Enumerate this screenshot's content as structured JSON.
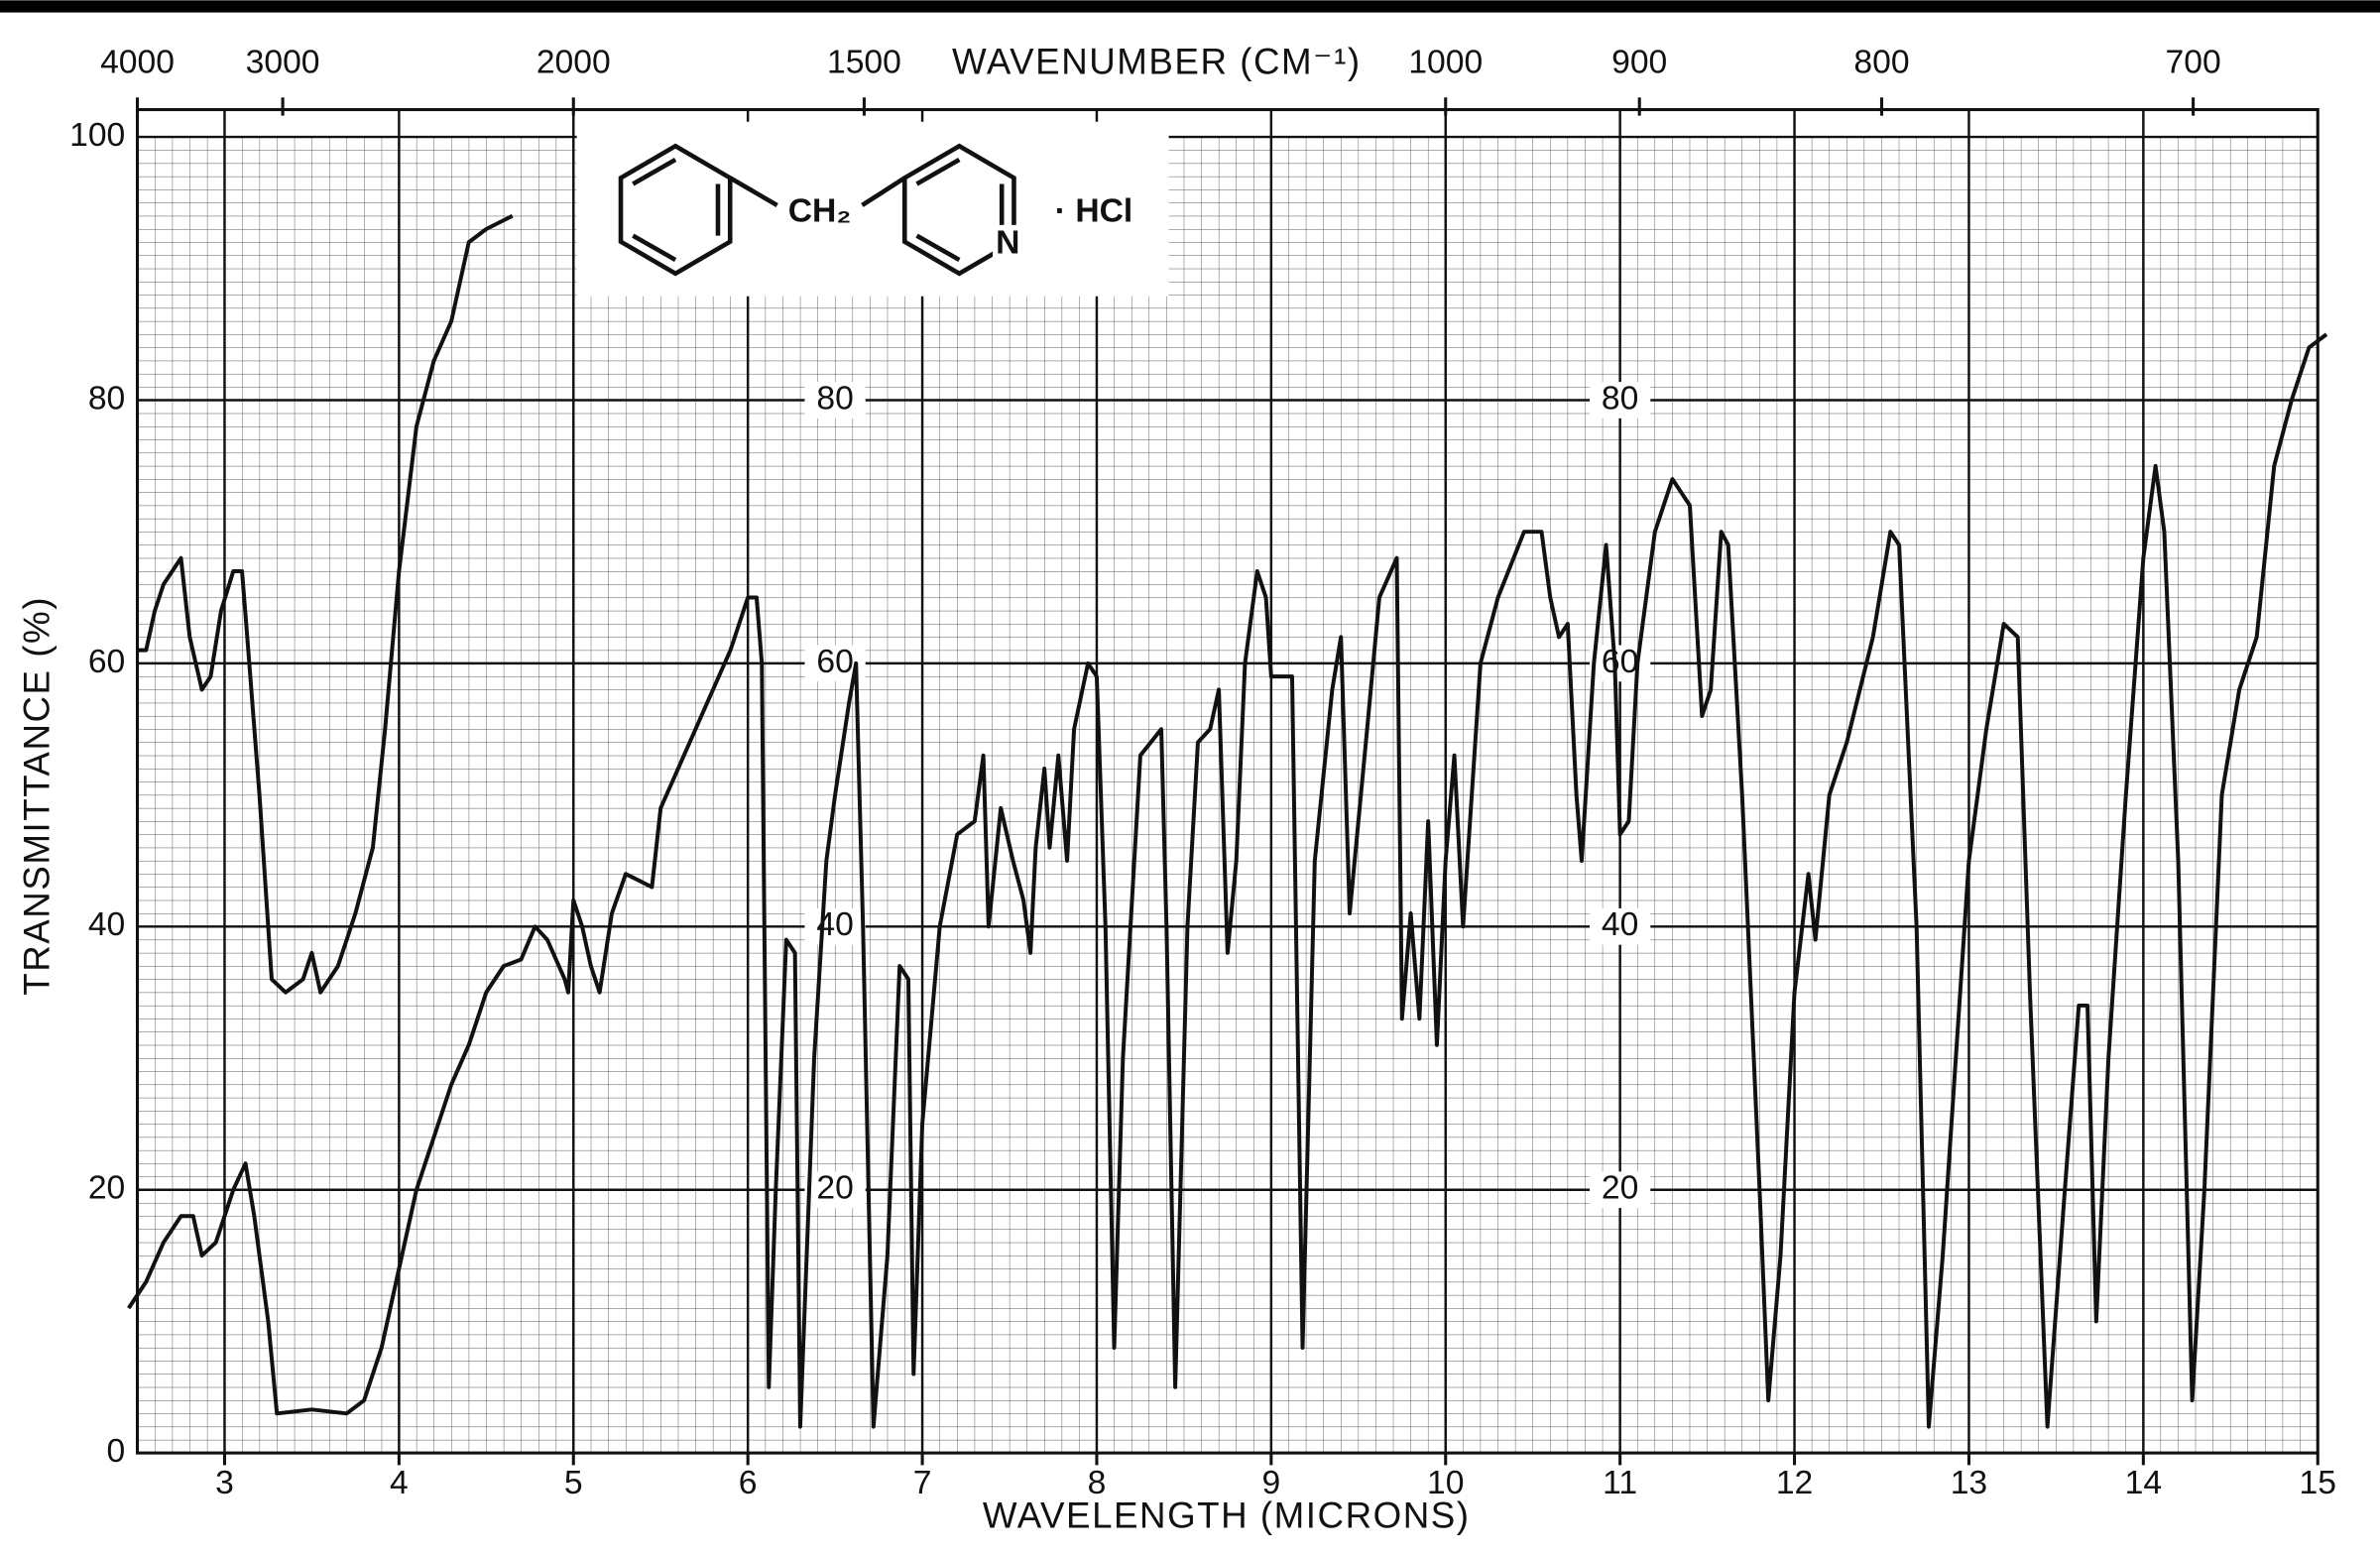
{
  "chart_data": {
    "type": "line",
    "x_label": "WAVELENGTH (MICRONS)",
    "y_label": "TRANSMITTANCE (%)",
    "x2_label": "WAVENUMBER (CM⁻¹)",
    "xlim": [
      2.5,
      15
    ],
    "ylim": [
      0,
      100
    ],
    "xticks": [
      3,
      4,
      5,
      6,
      7,
      8,
      9,
      10,
      11,
      12,
      13,
      14,
      15
    ],
    "yticks": [
      0,
      20,
      40,
      60,
      80,
      100
    ],
    "x2ticks": [
      4000,
      3000,
      2000,
      1500,
      1000,
      900,
      800,
      700
    ],
    "inner_yticks": [
      80,
      60,
      40,
      20
    ],
    "grid": true,
    "structure": {
      "labels": [
        "CH₂",
        "N",
        "· HCl"
      ]
    },
    "series": [
      {
        "color": "#111111",
        "x": [
          2.5,
          2.55,
          2.6,
          2.65,
          2.7,
          2.75,
          2.8,
          2.87,
          2.92,
          2.98,
          3.05,
          3.1,
          3.13,
          3.2,
          3.27,
          3.35,
          3.45,
          3.5,
          3.55,
          3.65,
          3.75,
          3.85,
          3.92,
          4.0,
          4.1,
          4.2,
          4.3,
          4.4,
          4.5,
          4.65
        ],
        "values": [
          61,
          61,
          64,
          66,
          67,
          68,
          62,
          58,
          59,
          64,
          67,
          67,
          62,
          50,
          36,
          35,
          36,
          38,
          35,
          37,
          41,
          46,
          55,
          67,
          78,
          83,
          86,
          92,
          93,
          94
        ]
      },
      {
        "color": "#111111",
        "x": [
          2.45,
          2.55,
          2.65,
          2.75,
          2.82,
          2.87,
          2.95,
          3.05,
          3.12,
          3.17,
          3.25,
          3.3,
          3.5,
          3.7,
          3.8,
          3.9,
          4.0,
          4.1,
          4.2,
          4.3,
          4.4,
          4.5,
          4.6,
          4.7,
          4.78,
          4.85,
          4.95,
          4.97,
          5.0,
          5.05,
          5.1,
          5.15,
          5.22,
          5.3,
          5.45,
          5.5,
          5.6,
          5.7,
          5.8,
          5.9,
          6.0,
          6.05,
          6.08,
          6.12,
          6.16,
          6.22,
          6.27,
          6.3,
          6.38,
          6.45,
          6.5,
          6.58,
          6.62,
          6.66,
          6.72,
          6.8,
          6.87,
          6.92,
          6.95,
          7.0,
          7.1,
          7.2,
          7.3,
          7.35,
          7.38,
          7.45,
          7.52,
          7.58,
          7.62,
          7.65,
          7.7,
          7.73,
          7.78,
          7.83,
          7.87,
          7.95,
          8.0,
          8.05,
          8.1,
          8.15,
          8.25,
          8.37,
          8.4,
          8.45,
          8.52,
          8.58,
          8.65,
          8.7,
          8.75,
          8.8,
          8.85,
          8.92,
          8.97,
          9.0,
          9.12,
          9.18,
          9.25,
          9.35,
          9.4,
          9.45,
          9.55,
          9.62,
          9.72,
          9.75,
          9.8,
          9.85,
          9.9,
          9.95,
          10.0,
          10.05,
          10.1,
          10.2,
          10.3,
          10.45,
          10.55,
          10.6,
          10.65,
          10.7,
          10.75,
          10.78,
          10.85,
          10.92,
          10.97,
          11.0,
          11.05,
          11.1,
          11.2,
          11.3,
          11.4,
          11.47,
          11.52,
          11.58,
          11.62,
          11.7,
          11.8,
          11.85,
          11.92,
          12.0,
          12.08,
          12.12,
          12.2,
          12.3,
          12.45,
          12.55,
          12.6,
          12.7,
          12.77,
          12.85,
          13.0,
          13.1,
          13.2,
          13.28,
          13.35,
          13.45,
          13.55,
          13.63,
          13.68,
          13.73,
          13.8,
          13.9,
          14.0,
          14.07,
          14.12,
          14.2,
          14.28,
          14.35,
          14.45,
          14.55,
          14.65,
          14.75,
          14.85,
          14.95,
          15.05
        ],
        "values": [
          11,
          13,
          16,
          18,
          18,
          15,
          16,
          20,
          22,
          18,
          10,
          3,
          3.3,
          3,
          4,
          8,
          14,
          20,
          24,
          28,
          31,
          35,
          37,
          37.5,
          40,
          39,
          36,
          35,
          42,
          40,
          37,
          35,
          41,
          44,
          43,
          49,
          52,
          55,
          58,
          61,
          65,
          65,
          60,
          5,
          20,
          39,
          38,
          2,
          30,
          45,
          50,
          57,
          60,
          40,
          2,
          15,
          37,
          36,
          6,
          25,
          40,
          47,
          48,
          53,
          40,
          49,
          45,
          42,
          38,
          46,
          52,
          46,
          53,
          45,
          55,
          60,
          59,
          40,
          8,
          30,
          53,
          55,
          40,
          5,
          40,
          54,
          55,
          58,
          38,
          45,
          60,
          67,
          65,
          59,
          59,
          8,
          45,
          58,
          62,
          41,
          55,
          65,
          68,
          33,
          41,
          33,
          48,
          31,
          45,
          53,
          40,
          60,
          65,
          70,
          70,
          65,
          62,
          63,
          50,
          45,
          60,
          69,
          60,
          47,
          48,
          60,
          70,
          74,
          72,
          56,
          58,
          70,
          69,
          50,
          20,
          4,
          15,
          35,
          44,
          39,
          50,
          54,
          62,
          70,
          69,
          40,
          2,
          15,
          45,
          55,
          63,
          62,
          35,
          2,
          20,
          34,
          34,
          10,
          30,
          50,
          68,
          75,
          70,
          45,
          4,
          20,
          50,
          58,
          62,
          75,
          80,
          84,
          85
        ]
      }
    ]
  }
}
